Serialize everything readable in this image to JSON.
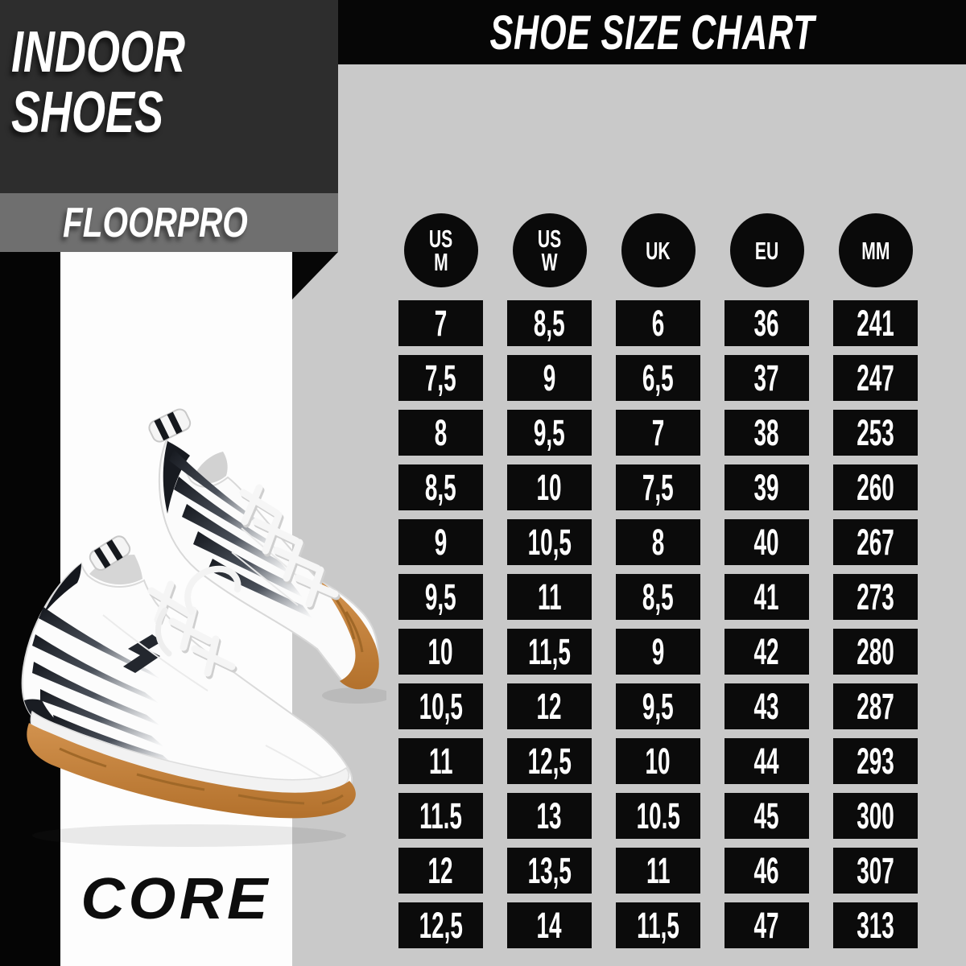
{
  "left_panel": {
    "heading_line1": "INDOOR",
    "heading_line2": "SHOES",
    "model": "FLOORPRO",
    "brand": "CORE"
  },
  "illustration": {
    "name": "white-court-shoes-pair",
    "description": "Pair of white indoor court shoes with dark gradient streaks, white laces and gum rubber soles"
  },
  "chart_data": {
    "type": "table",
    "title": "SHOE SIZE CHART",
    "column_labels": [
      "US M",
      "US W",
      "UK",
      "EU",
      "MM"
    ],
    "columns": [
      [
        "US",
        "M"
      ],
      [
        "US",
        "W"
      ],
      [
        "UK"
      ],
      [
        "EU"
      ],
      [
        "MM"
      ]
    ],
    "rows": [
      [
        "7",
        "8,5",
        "6",
        "36",
        "241"
      ],
      [
        "7,5",
        "9",
        "6,5",
        "37",
        "247"
      ],
      [
        "8",
        "9,5",
        "7",
        "38",
        "253"
      ],
      [
        "8,5",
        "10",
        "7,5",
        "39",
        "260"
      ],
      [
        "9",
        "10,5",
        "8",
        "40",
        "267"
      ],
      [
        "9,5",
        "11",
        "8,5",
        "41",
        "273"
      ],
      [
        "10",
        "11,5",
        "9",
        "42",
        "280"
      ],
      [
        "10,5",
        "12",
        "9,5",
        "43",
        "287"
      ],
      [
        "11",
        "12,5",
        "10",
        "44",
        "293"
      ],
      [
        "11.5",
        "13",
        "10.5",
        "45",
        "300"
      ],
      [
        "12",
        "13,5",
        "11",
        "46",
        "307"
      ],
      [
        "12,5",
        "14",
        "11,5",
        "47",
        "313"
      ]
    ],
    "legend_position": "none",
    "grid": false
  },
  "colors": {
    "background": "#c9c9c9",
    "header_block": "#2d2d2d",
    "model_bar": "#6f6f6f",
    "black_bar": "#060606",
    "cell_background": "#0b0b0b",
    "text_white": "#ffffff",
    "gum_sole": "#c2813d"
  }
}
